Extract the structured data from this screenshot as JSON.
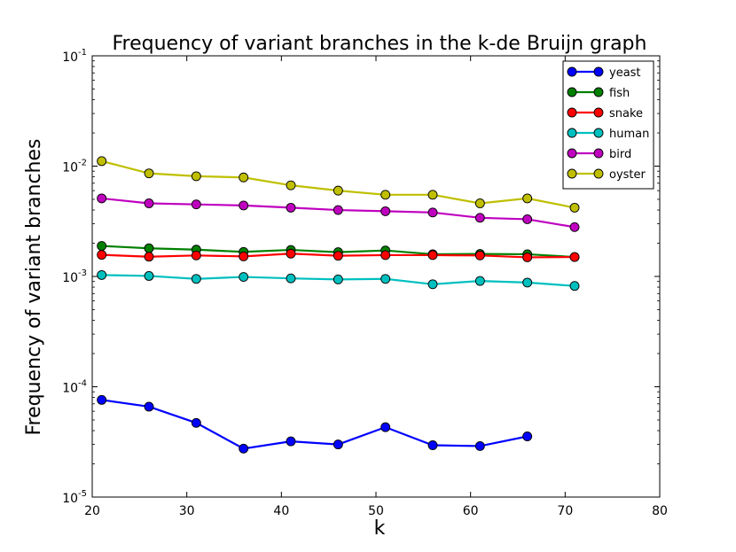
{
  "chart_data": {
    "type": "line",
    "title": "Frequency of variant branches in the k-de Bruijn graph",
    "xlabel": "k",
    "ylabel": "Frequency of variant branches",
    "xlim": [
      20,
      80
    ],
    "ylim": [
      1e-05,
      0.1
    ],
    "yscale": "log",
    "xticks": [
      20,
      30,
      40,
      50,
      60,
      70,
      80
    ],
    "yticks": [
      {
        "value": 1e-05,
        "base": "10",
        "exp": "-5"
      },
      {
        "value": 0.0001,
        "base": "10",
        "exp": "-4"
      },
      {
        "value": 0.001,
        "base": "10",
        "exp": "-3"
      },
      {
        "value": 0.01,
        "base": "10",
        "exp": "-2"
      },
      {
        "value": 0.1,
        "base": "10",
        "exp": "-1"
      }
    ],
    "grid": false,
    "legend_position": "top-right",
    "series": [
      {
        "name": "yeast",
        "color": "#0000ff",
        "x": [
          21,
          26,
          31,
          36,
          41,
          46,
          51,
          56,
          61,
          66
        ],
        "y": [
          7.6e-05,
          6.6e-05,
          4.7e-05,
          2.75e-05,
          3.2e-05,
          3e-05,
          4.3e-05,
          2.95e-05,
          2.9e-05,
          3.55e-05
        ]
      },
      {
        "name": "fish",
        "color": "#008000",
        "x": [
          21,
          26,
          31,
          36,
          41,
          46,
          51,
          56,
          61,
          66,
          71
        ],
        "y": [
          0.00189,
          0.0018,
          0.00175,
          0.00167,
          0.00174,
          0.00166,
          0.00172,
          0.00159,
          0.0016,
          0.00159,
          0.0015
        ]
      },
      {
        "name": "snake",
        "color": "#ff0000",
        "x": [
          21,
          26,
          31,
          36,
          41,
          46,
          51,
          56,
          61,
          66,
          71
        ],
        "y": [
          0.00157,
          0.00151,
          0.00155,
          0.00152,
          0.00161,
          0.00154,
          0.00156,
          0.00156,
          0.00155,
          0.00149,
          0.0015
        ]
      },
      {
        "name": "human",
        "color": "#00bfbf",
        "x": [
          21,
          26,
          31,
          36,
          41,
          46,
          51,
          56,
          61,
          66,
          71
        ],
        "y": [
          0.00103,
          0.00101,
          0.00095,
          0.00099,
          0.00096,
          0.00094,
          0.00095,
          0.00085,
          0.00091,
          0.00088,
          0.00082
        ]
      },
      {
        "name": "bird",
        "color": "#bf00bf",
        "x": [
          21,
          26,
          31,
          36,
          41,
          46,
          51,
          56,
          61,
          66,
          71
        ],
        "y": [
          0.0051,
          0.0046,
          0.0045,
          0.0044,
          0.0042,
          0.004,
          0.0039,
          0.0038,
          0.0034,
          0.0033,
          0.0028
        ]
      },
      {
        "name": "oyster",
        "color": "#bfbf00",
        "x": [
          21,
          26,
          31,
          36,
          41,
          46,
          51,
          56,
          61,
          66,
          71
        ],
        "y": [
          0.0111,
          0.0086,
          0.0081,
          0.0079,
          0.0067,
          0.006,
          0.0055,
          0.0055,
          0.0046,
          0.0051,
          0.0042
        ]
      }
    ]
  }
}
